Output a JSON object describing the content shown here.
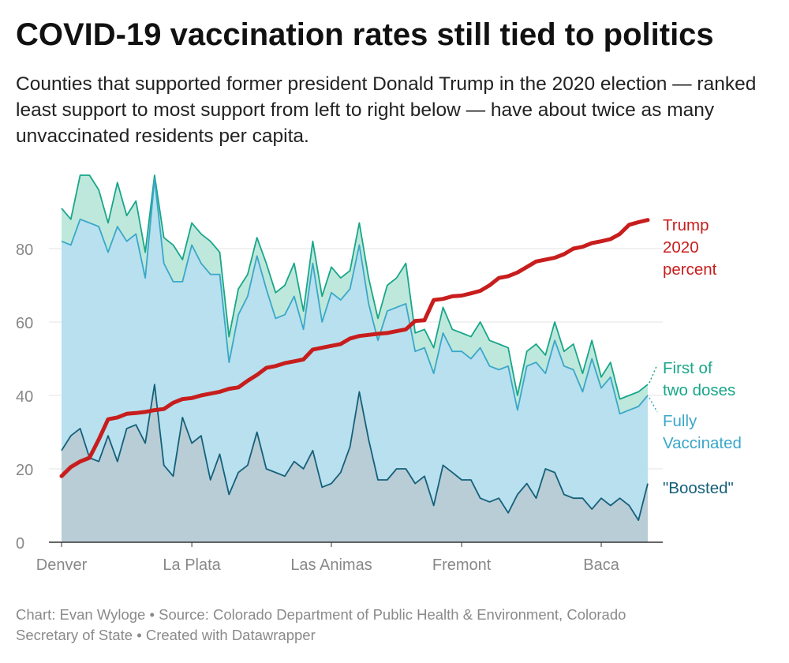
{
  "title": "COVID-19 vaccination rates still tied to politics",
  "subtitle": "Counties that supported former president Donald Trump in the 2020 election — ranked least support to most support from left to right below — have about twice as many unvaccinated residents per capita.",
  "footer": {
    "line1": "Chart: Evan Wyloge • Source: Colorado Department of Public Health & Environment, Colorado",
    "line2": "Secretary of State • Created with Datawrapper"
  },
  "colors": {
    "trump": "#c71e1d",
    "first_dose_line": "#18a689",
    "first_dose_fill": "#bfe8dc",
    "fully_line": "#3aa7c9",
    "fully_fill": "#b8e0ee",
    "boosted_line": "#15607a",
    "boosted_fill": "#b8cdd6",
    "grid": "#e3e3e3",
    "axis_text": "#888888"
  },
  "chart_data": {
    "type": "area",
    "x_axis": {
      "labels": [
        {
          "index": 0,
          "text": "Denver"
        },
        {
          "index": 14,
          "text": "La Plata"
        },
        {
          "index": 29,
          "text": "Las Animas"
        },
        {
          "index": 43,
          "text": "Fremont"
        },
        {
          "index": 58,
          "text": "Baca"
        }
      ],
      "count": 64
    },
    "y_axis": {
      "ticks": [
        0,
        20,
        40,
        60,
        80
      ],
      "ylim": [
        0,
        100
      ],
      "grid": true
    },
    "series": [
      {
        "key": "first_dose",
        "name": "First of two doses",
        "values": [
          91,
          88,
          100,
          100,
          96,
          87,
          98,
          89,
          93,
          79,
          100,
          83,
          81,
          77,
          87,
          84,
          82,
          79,
          56,
          69,
          73,
          83,
          76,
          68,
          70,
          76,
          63,
          82,
          67,
          75,
          72,
          74,
          87,
          72,
          61,
          70,
          72,
          76,
          57,
          58,
          53,
          64,
          58,
          57,
          56,
          60,
          55,
          54,
          53,
          40,
          52,
          54,
          51,
          60,
          52,
          54,
          46,
          55,
          45,
          49,
          39,
          40,
          41,
          43
        ]
      },
      {
        "key": "fully",
        "name": "Fully Vaccinated",
        "values": [
          82,
          81,
          88,
          87,
          86,
          79,
          86,
          82,
          84,
          72,
          99,
          76,
          71,
          71,
          81,
          76,
          73,
          73,
          49,
          62,
          67,
          78,
          69,
          61,
          62,
          67,
          58,
          76,
          60,
          68,
          66,
          69,
          81,
          65,
          55,
          63,
          64,
          65,
          52,
          53,
          46,
          57,
          52,
          52,
          50,
          53,
          48,
          47,
          48,
          36,
          48,
          49,
          46,
          55,
          48,
          47,
          41,
          50,
          42,
          45,
          35,
          36,
          37,
          40
        ]
      },
      {
        "key": "boosted",
        "name": "\"Boosted\"",
        "values": [
          25,
          29,
          31,
          23,
          22,
          29,
          22,
          31,
          32,
          27,
          43,
          21,
          18,
          34,
          27,
          29,
          17,
          24,
          13,
          19,
          21,
          30,
          20,
          19,
          18,
          22,
          20,
          25,
          15,
          16,
          19,
          26,
          41,
          28,
          17,
          17,
          20,
          20,
          16,
          18,
          10,
          21,
          19,
          17,
          17,
          12,
          11,
          12,
          8,
          13,
          16,
          12,
          20,
          19,
          13,
          12,
          12,
          9,
          12,
          10,
          12,
          10,
          6,
          16
        ]
      },
      {
        "key": "trump",
        "name": "Trump 2020 percent",
        "values": [
          18,
          20.5,
          22,
          23,
          28,
          33.5,
          34,
          35,
          35.2,
          35.5,
          36,
          36.3,
          38,
          39,
          39.3,
          40,
          40.5,
          41,
          41.8,
          42.2,
          44,
          45.6,
          47.5,
          48,
          48.8,
          49.3,
          49.8,
          52.5,
          53,
          53.5,
          54,
          55.5,
          56.2,
          56.5,
          56.8,
          57,
          57.5,
          58,
          60.3,
          60.5,
          66,
          66.3,
          67,
          67.2,
          67.8,
          68.5,
          70,
          72,
          72.5,
          73.5,
          75,
          76.5,
          77,
          77.5,
          78.5,
          80,
          80.5,
          81.5,
          82,
          82.6,
          84,
          86.5,
          87.2,
          87.8
        ]
      }
    ],
    "labels": {
      "trump": [
        "Trump",
        "2020",
        "percent"
      ],
      "first_dose": [
        "First of",
        "two doses"
      ],
      "fully": [
        "Fully",
        "Vaccinated"
      ],
      "boosted": [
        "\"Boosted\""
      ]
    }
  }
}
